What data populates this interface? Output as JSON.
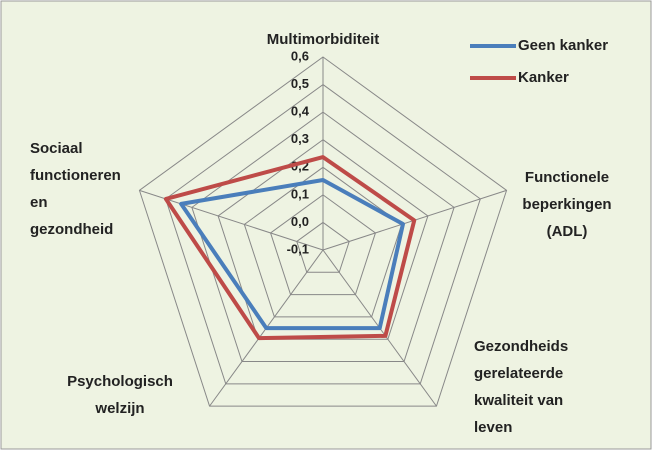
{
  "chart_data": {
    "type": "radar",
    "categories": [
      "Multimorbiditeit",
      "Functionele\nbeperkingen\n(ADL)",
      "Gezondheids\ngerelateerde\nkwaliteit van\nleven",
      "Psychologisch\nwelzijn",
      "Sociaal\nfunctioneren\nen\ngezondheid"
    ],
    "series": [
      {
        "name": "Geen kanker",
        "color": "#4a7ebb",
        "values": [
          0.154,
          0.205,
          0.25,
          0.25,
          0.441
        ]
      },
      {
        "name": "Kanker",
        "color": "#be4b48",
        "values": [
          0.237,
          0.248,
          0.285,
          0.295,
          0.499
        ]
      }
    ],
    "ylim": [
      -0.1,
      0.6
    ],
    "yticks": [
      {
        "value": -0.1,
        "label": "-0,1"
      },
      {
        "value": 0.0,
        "label": "0,0"
      },
      {
        "value": 0.1,
        "label": "0,1"
      },
      {
        "value": 0.2,
        "label": "0,2"
      },
      {
        "value": 0.3,
        "label": "0,3"
      },
      {
        "value": 0.4,
        "label": "0,4"
      },
      {
        "value": 0.5,
        "label": "0,5"
      },
      {
        "value": 0.6,
        "label": "0,6"
      }
    ],
    "grid": true,
    "legend": "top-right"
  }
}
